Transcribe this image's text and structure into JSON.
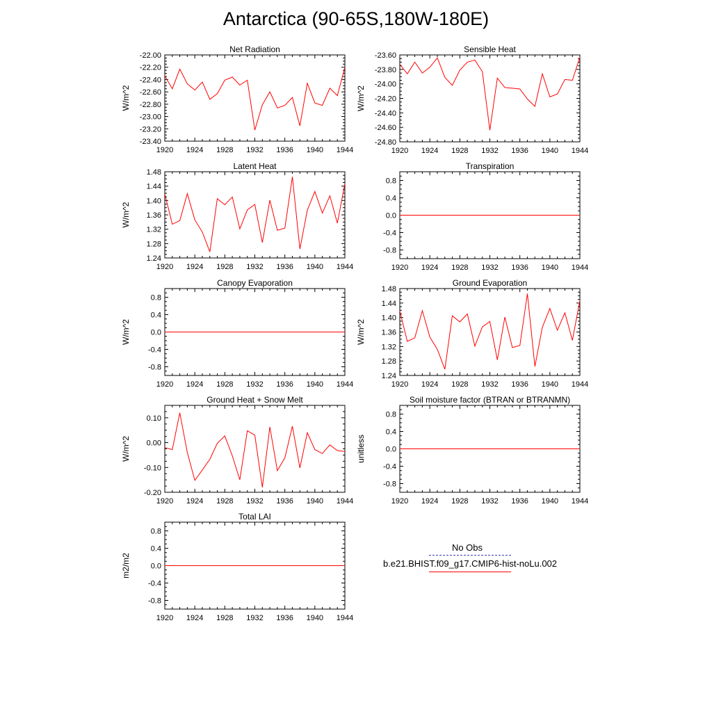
{
  "title": "Antarctica (90-65S,180W-180E)",
  "legend": {
    "obs_label": "No Obs",
    "model_label": "b.e21.BHIST.f09_g17.CMIP6-hist-noLu.002",
    "obs_color": "#3b3bb8",
    "model_color": "#ff0000"
  },
  "chart_data": [
    {
      "type": "line",
      "title": "Net Radiation",
      "ylabel": "W/m^2",
      "xlim": [
        1920,
        1944
      ],
      "ylim": [
        -23.4,
        -22.0
      ],
      "xticks": [
        1920,
        1924,
        1928,
        1932,
        1936,
        1940,
        1944
      ],
      "yticks": [
        "-22.00",
        "-22.20",
        "-22.40",
        "-22.60",
        "-22.80",
        "-23.00",
        "-23.20",
        "-23.40"
      ],
      "series": [
        {
          "color": "#ff0000",
          "x": [
            1920,
            1921,
            1922,
            1923,
            1924,
            1925,
            1926,
            1927,
            1928,
            1929,
            1930,
            1931,
            1932,
            1933,
            1934,
            1935,
            1936,
            1937,
            1938,
            1939,
            1940,
            1941,
            1942,
            1943,
            1944
          ],
          "y": [
            -22.34,
            -22.55,
            -22.23,
            -22.47,
            -22.57,
            -22.44,
            -22.72,
            -22.63,
            -22.41,
            -22.36,
            -22.49,
            -22.41,
            -23.22,
            -22.81,
            -22.6,
            -22.86,
            -22.82,
            -22.69,
            -23.15,
            -22.46,
            -22.78,
            -22.82,
            -22.54,
            -22.66,
            -22.2
          ]
        }
      ]
    },
    {
      "type": "line",
      "title": "Sensible Heat",
      "ylabel": "W/m^2",
      "xlim": [
        1920,
        1944
      ],
      "ylim": [
        -24.8,
        -23.6
      ],
      "xticks": [
        1920,
        1924,
        1928,
        1932,
        1936,
        1940,
        1944
      ],
      "yticks": [
        "-23.60",
        "-23.80",
        "-24.00",
        "-24.20",
        "-24.40",
        "-24.60",
        "-24.80"
      ],
      "series": [
        {
          "color": "#ff0000",
          "x": [
            1920,
            1921,
            1922,
            1923,
            1924,
            1925,
            1926,
            1927,
            1928,
            1929,
            1930,
            1931,
            1932,
            1933,
            1934,
            1935,
            1936,
            1937,
            1938,
            1939,
            1940,
            1941,
            1942,
            1943,
            1944
          ],
          "y": [
            -23.73,
            -23.86,
            -23.7,
            -23.85,
            -23.77,
            -23.64,
            -23.91,
            -24.02,
            -23.81,
            -23.7,
            -23.67,
            -23.83,
            -24.64,
            -23.92,
            -24.05,
            -24.06,
            -24.07,
            -24.21,
            -24.31,
            -23.86,
            -24.18,
            -24.14,
            -23.94,
            -23.95,
            -23.63
          ]
        }
      ]
    },
    {
      "type": "line",
      "title": "Latent Heat",
      "ylabel": "W/m^2",
      "xlim": [
        1920,
        1944
      ],
      "ylim": [
        1.24,
        1.48
      ],
      "xticks": [
        1920,
        1924,
        1928,
        1932,
        1936,
        1940,
        1944
      ],
      "yticks": [
        "1.48",
        "1.44",
        "1.40",
        "1.36",
        "1.32",
        "1.28",
        "1.24"
      ],
      "series": [
        {
          "color": "#ff0000",
          "x": [
            1920,
            1921,
            1922,
            1923,
            1924,
            1925,
            1926,
            1927,
            1928,
            1929,
            1930,
            1931,
            1932,
            1933,
            1934,
            1935,
            1936,
            1937,
            1938,
            1939,
            1940,
            1941,
            1942,
            1943,
            1944
          ],
          "y": [
            1.418,
            1.334,
            1.344,
            1.419,
            1.346,
            1.312,
            1.257,
            1.405,
            1.388,
            1.41,
            1.321,
            1.374,
            1.389,
            1.283,
            1.401,
            1.317,
            1.323,
            1.466,
            1.265,
            1.373,
            1.425,
            1.365,
            1.413,
            1.337,
            1.447
          ]
        }
      ]
    },
    {
      "type": "line",
      "title": "Transpiration",
      "ylabel": "",
      "xlim": [
        1920,
        1944
      ],
      "ylim": [
        -1.0,
        1.0
      ],
      "xticks": [
        1920,
        1924,
        1928,
        1932,
        1936,
        1940,
        1944
      ],
      "yticks": [
        "0.8",
        "0.4",
        "0.0",
        "-0.4",
        "-0.8"
      ],
      "series": [
        {
          "color": "#ff0000",
          "x": [
            1920,
            1944
          ],
          "y": [
            0,
            0
          ]
        }
      ]
    },
    {
      "type": "line",
      "title": "Canopy Evaporation",
      "ylabel": "W/m^2",
      "xlim": [
        1920,
        1944
      ],
      "ylim": [
        -1.0,
        1.0
      ],
      "xticks": [
        1920,
        1924,
        1928,
        1932,
        1936,
        1940,
        1944
      ],
      "yticks": [
        "0.8",
        "0.4",
        "0.0",
        "-0.4",
        "-0.8"
      ],
      "series": [
        {
          "color": "#ff0000",
          "x": [
            1920,
            1944
          ],
          "y": [
            0,
            0
          ]
        }
      ]
    },
    {
      "type": "line",
      "title": "Ground Evaporation",
      "ylabel": "W/m^2",
      "xlim": [
        1920,
        1944
      ],
      "ylim": [
        1.24,
        1.48
      ],
      "xticks": [
        1920,
        1924,
        1928,
        1932,
        1936,
        1940,
        1944
      ],
      "yticks": [
        "1.48",
        "1.44",
        "1.40",
        "1.36",
        "1.32",
        "1.28",
        "1.24"
      ],
      "series": [
        {
          "color": "#ff0000",
          "x": [
            1920,
            1921,
            1922,
            1923,
            1924,
            1925,
            1926,
            1927,
            1928,
            1929,
            1930,
            1931,
            1932,
            1933,
            1934,
            1935,
            1936,
            1937,
            1938,
            1939,
            1940,
            1941,
            1942,
            1943,
            1944
          ],
          "y": [
            1.418,
            1.334,
            1.344,
            1.419,
            1.346,
            1.312,
            1.257,
            1.405,
            1.388,
            1.41,
            1.321,
            1.374,
            1.389,
            1.283,
            1.401,
            1.317,
            1.323,
            1.466,
            1.265,
            1.373,
            1.425,
            1.365,
            1.413,
            1.337,
            1.447
          ]
        }
      ]
    },
    {
      "type": "line",
      "title": "Ground Heat + Snow Melt",
      "ylabel": "W/m^2",
      "xlim": [
        1920,
        1944
      ],
      "ylim": [
        -0.2,
        0.15
      ],
      "xticks": [
        1920,
        1924,
        1928,
        1932,
        1936,
        1940,
        1944
      ],
      "yticks": [
        "0.10",
        "0.00",
        "-0.10",
        "-0.20"
      ],
      "series": [
        {
          "color": "#ff0000",
          "x": [
            1920,
            1921,
            1922,
            1923,
            1924,
            1925,
            1926,
            1927,
            1928,
            1929,
            1930,
            1931,
            1932,
            1933,
            1934,
            1935,
            1936,
            1937,
            1938,
            1939,
            1940,
            1941,
            1942,
            1943,
            1944
          ],
          "y": [
            -0.02,
            -0.028,
            0.12,
            -0.04,
            -0.152,
            -0.11,
            -0.067,
            -0.003,
            0.027,
            -0.053,
            -0.15,
            0.048,
            0.03,
            -0.18,
            0.063,
            -0.113,
            -0.061,
            0.066,
            -0.102,
            0.04,
            -0.028,
            -0.044,
            -0.009,
            -0.032,
            -0.036
          ]
        }
      ]
    },
    {
      "type": "line",
      "title": "Soil moisture factor (BTRAN or BTRANMN)",
      "ylabel": "unitless",
      "xlim": [
        1920,
        1944
      ],
      "ylim": [
        -1.0,
        1.0
      ],
      "xticks": [
        1920,
        1924,
        1928,
        1932,
        1936,
        1940,
        1944
      ],
      "yticks": [
        "0.8",
        "0.4",
        "0.0",
        "-0.4",
        "-0.8"
      ],
      "series": [
        {
          "color": "#ff0000",
          "x": [
            1920,
            1944
          ],
          "y": [
            0,
            0
          ]
        }
      ]
    },
    {
      "type": "line",
      "title": "Total LAI",
      "ylabel": "m2/m2",
      "xlim": [
        1920,
        1944
      ],
      "ylim": [
        -1.0,
        1.0
      ],
      "xticks": [
        1920,
        1924,
        1928,
        1932,
        1936,
        1940,
        1944
      ],
      "yticks": [
        "0.8",
        "0.4",
        "0.0",
        "-0.4",
        "-0.8"
      ],
      "series": [
        {
          "color": "#ff0000",
          "x": [
            1920,
            1944
          ],
          "y": [
            0,
            0
          ]
        }
      ]
    }
  ]
}
